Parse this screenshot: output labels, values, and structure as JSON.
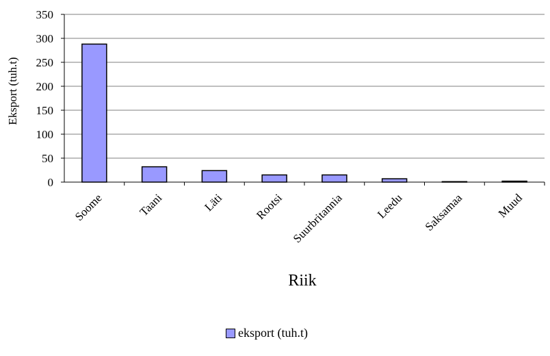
{
  "chart_data": {
    "type": "bar",
    "categories": [
      "Soome",
      "Taani",
      "Läti",
      "Rootsi",
      "Suurbritannia",
      "Leedu",
      "Saksamaa",
      "Muud"
    ],
    "series": [
      {
        "name": "eksport (tuh.t)",
        "values": [
          288,
          32,
          24,
          15,
          15,
          7,
          1,
          2
        ]
      }
    ],
    "title": "",
    "xlabel": "Riik",
    "ylabel": "Eksport (tuh.t)",
    "ylim": [
      0,
      350
    ],
    "yticks": [
      "0",
      "50",
      "100",
      "150",
      "200",
      "250",
      "300",
      "350"
    ],
    "grid": true,
    "legend_position": "bottom",
    "colors": {
      "bar_fill": "#9999ff",
      "bar_stroke": "#000000",
      "grid": "#000000"
    }
  }
}
